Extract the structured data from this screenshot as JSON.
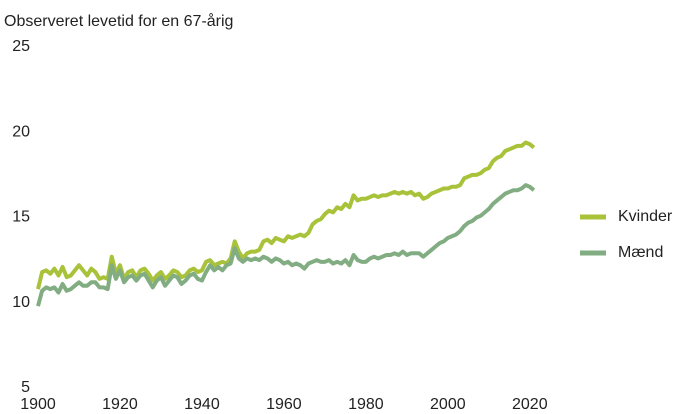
{
  "chart_data": {
    "type": "line",
    "title": "Observeret levetid for en 67-årig",
    "x": [
      1900,
      1901,
      1902,
      1903,
      1904,
      1905,
      1906,
      1907,
      1908,
      1909,
      1910,
      1911,
      1912,
      1913,
      1914,
      1915,
      1916,
      1917,
      1918,
      1919,
      1920,
      1921,
      1922,
      1923,
      1924,
      1925,
      1926,
      1927,
      1928,
      1929,
      1930,
      1931,
      1932,
      1933,
      1934,
      1935,
      1936,
      1937,
      1938,
      1939,
      1940,
      1941,
      1942,
      1943,
      1944,
      1945,
      1946,
      1947,
      1948,
      1949,
      1950,
      1951,
      1952,
      1953,
      1954,
      1955,
      1956,
      1957,
      1958,
      1959,
      1960,
      1961,
      1962,
      1963,
      1964,
      1965,
      1966,
      1967,
      1968,
      1969,
      1970,
      1971,
      1972,
      1973,
      1974,
      1975,
      1976,
      1977,
      1978,
      1979,
      1980,
      1981,
      1982,
      1983,
      1984,
      1985,
      1986,
      1987,
      1988,
      1989,
      1990,
      1991,
      1992,
      1993,
      1994,
      1995,
      1996,
      1997,
      1998,
      1999,
      2000,
      2001,
      2002,
      2003,
      2004,
      2005,
      2006,
      2007,
      2008,
      2009,
      2010,
      2011,
      2012,
      2013,
      2014,
      2015,
      2016,
      2017,
      2018,
      2019,
      2020,
      2021
    ],
    "series": [
      {
        "name": "Kvinder",
        "color": "#a8c23a",
        "values": [
          10.8,
          11.8,
          11.9,
          11.7,
          12.0,
          11.6,
          12.1,
          11.5,
          11.6,
          11.9,
          12.2,
          11.9,
          11.6,
          12.0,
          11.8,
          11.4,
          11.5,
          11.4,
          12.7,
          11.7,
          12.2,
          11.4,
          11.8,
          11.9,
          11.5,
          11.9,
          12.0,
          11.7,
          11.3,
          11.6,
          11.8,
          11.4,
          11.6,
          11.9,
          11.8,
          11.5,
          11.6,
          11.9,
          12.0,
          11.8,
          11.9,
          12.4,
          12.5,
          12.2,
          12.3,
          12.4,
          12.3,
          12.6,
          13.6,
          13.0,
          12.6,
          12.9,
          13.0,
          13.0,
          13.1,
          13.6,
          13.7,
          13.5,
          13.8,
          13.7,
          13.6,
          13.9,
          13.8,
          13.9,
          14.0,
          13.9,
          14.1,
          14.6,
          14.8,
          14.9,
          15.2,
          15.4,
          15.3,
          15.6,
          15.5,
          15.8,
          15.6,
          16.3,
          16.0,
          16.1,
          16.1,
          16.2,
          16.3,
          16.2,
          16.3,
          16.3,
          16.4,
          16.5,
          16.4,
          16.5,
          16.4,
          16.5,
          16.3,
          16.4,
          16.1,
          16.2,
          16.4,
          16.5,
          16.6,
          16.7,
          16.7,
          16.8,
          16.8,
          16.9,
          17.3,
          17.4,
          17.5,
          17.5,
          17.6,
          17.8,
          17.9,
          18.3,
          18.5,
          18.6,
          18.9,
          19.0,
          19.1,
          19.2,
          19.2,
          19.4,
          19.3,
          19.1
        ]
      },
      {
        "name": "Mænd",
        "color": "#82ad82",
        "values": [
          9.8,
          10.7,
          10.9,
          10.8,
          10.9,
          10.6,
          11.1,
          10.7,
          10.8,
          11.0,
          11.2,
          11.0,
          11.0,
          11.2,
          11.2,
          10.9,
          10.9,
          10.8,
          12.2,
          11.4,
          11.9,
          11.2,
          11.5,
          11.6,
          11.3,
          11.6,
          11.7,
          11.3,
          10.9,
          11.3,
          11.5,
          11.0,
          11.3,
          11.6,
          11.5,
          11.1,
          11.3,
          11.6,
          11.7,
          11.4,
          11.3,
          11.8,
          12.2,
          11.9,
          12.1,
          11.9,
          12.2,
          12.3,
          13.2,
          12.6,
          12.4,
          12.6,
          12.5,
          12.6,
          12.5,
          12.7,
          12.6,
          12.4,
          12.6,
          12.5,
          12.3,
          12.4,
          12.2,
          12.3,
          12.2,
          12.0,
          12.3,
          12.4,
          12.5,
          12.4,
          12.4,
          12.5,
          12.3,
          12.4,
          12.3,
          12.5,
          12.2,
          12.8,
          12.5,
          12.4,
          12.4,
          12.6,
          12.7,
          12.6,
          12.7,
          12.8,
          12.8,
          12.9,
          12.8,
          13.0,
          12.8,
          12.9,
          12.9,
          12.9,
          12.7,
          12.9,
          13.1,
          13.3,
          13.5,
          13.6,
          13.8,
          13.9,
          14.0,
          14.2,
          14.5,
          14.7,
          14.8,
          15.0,
          15.1,
          15.3,
          15.5,
          15.8,
          16.0,
          16.2,
          16.4,
          16.5,
          16.6,
          16.6,
          16.7,
          16.9,
          16.8,
          16.6
        ]
      }
    ],
    "xlim": [
      1900,
      2022
    ],
    "xticks": [
      1900,
      1920,
      1940,
      1960,
      1980,
      2000,
      2020
    ],
    "ylim": [
      5,
      25
    ],
    "yticks": [
      5,
      10,
      15,
      20,
      25
    ],
    "grid": false,
    "legend": "right"
  }
}
